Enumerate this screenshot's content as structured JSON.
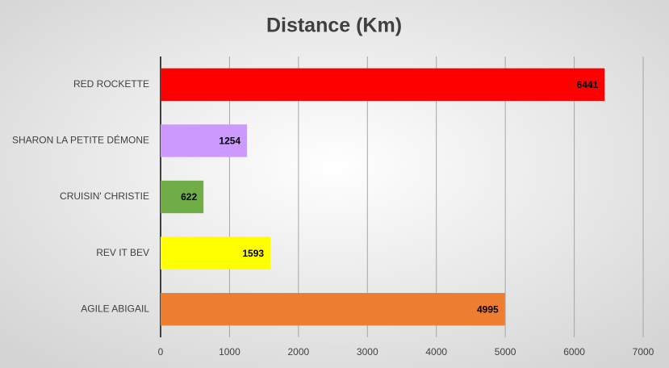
{
  "chart_data": {
    "type": "bar",
    "orientation": "horizontal",
    "title": "Distance (Km)",
    "categories": [
      "RED ROCKETTE",
      "SHARON LA PETITE DÉMONE",
      "CRUISIN' CHRISTIE",
      "REV IT BEV",
      "AGILE ABIGAIL"
    ],
    "values": [
      6441,
      1254,
      622,
      1593,
      4995
    ],
    "colors": [
      "#ff0000",
      "#cc99ff",
      "#70ad47",
      "#ffff00",
      "#ed7d31"
    ],
    "xlim": [
      0,
      7000
    ],
    "xticks": [
      0,
      1000,
      2000,
      3000,
      4000,
      5000,
      6000,
      7000
    ],
    "grid": true
  }
}
